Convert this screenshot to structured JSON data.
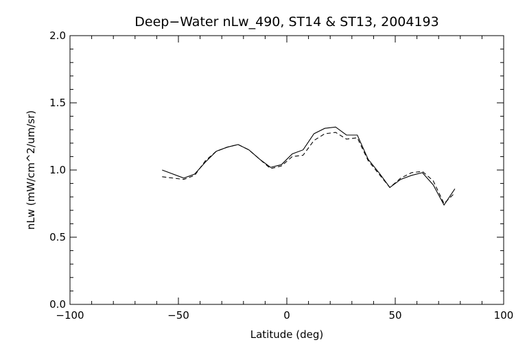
{
  "chart_data": {
    "type": "line",
    "title": "Deep−Water nLw_490, ST14 & ST13, 2004193",
    "xlabel": "Latitude (deg)",
    "ylabel": "nLw (mW/cm^2/um/sr)",
    "xlim": [
      -100,
      100
    ],
    "ylim": [
      0.0,
      2.0
    ],
    "xticks": [
      -100,
      -50,
      0,
      50,
      100
    ],
    "xtick_labels": [
      "−100",
      "−50",
      "0",
      "50",
      "100"
    ],
    "yticks": [
      0.0,
      0.5,
      1.0,
      1.5,
      2.0
    ],
    "ytick_labels": [
      "0.0",
      "0.5",
      "1.0",
      "1.5",
      "2.0"
    ],
    "grid": false,
    "series": [
      {
        "style": "solid",
        "color": "#000000",
        "x": [
          -57.5,
          -47.5,
          -42.5,
          -37.5,
          -32.5,
          -27.5,
          -22.5,
          -17.5,
          -12.5,
          -7.5,
          -2.5,
          2.5,
          7.5,
          12.5,
          17.5,
          22.5,
          27.5,
          32.5,
          37.5,
          42.5,
          47.5,
          52.5,
          57.5,
          62.5,
          67.5,
          72.5,
          77.5
        ],
        "y": [
          1.0,
          0.94,
          0.97,
          1.06,
          1.14,
          1.17,
          1.19,
          1.15,
          1.08,
          1.02,
          1.04,
          1.12,
          1.15,
          1.27,
          1.31,
          1.32,
          1.26,
          1.26,
          1.08,
          0.98,
          0.87,
          0.93,
          0.96,
          0.98,
          0.89,
          0.74,
          0.86
        ]
      },
      {
        "style": "dashed",
        "color": "#000000",
        "x": [
          -57.5,
          -47.5,
          -42.5,
          -37.5,
          -32.5,
          -27.5,
          -22.5,
          -17.5,
          -12.5,
          -7.5,
          -2.5,
          2.5,
          7.5,
          12.5,
          17.5,
          22.5,
          27.5,
          32.5,
          37.5,
          42.5,
          47.5,
          52.5,
          57.5,
          62.5,
          67.5,
          72.5,
          77.5
        ],
        "y": [
          0.95,
          0.93,
          0.96,
          1.07,
          1.14,
          1.17,
          1.19,
          1.15,
          1.08,
          1.01,
          1.03,
          1.1,
          1.11,
          1.22,
          1.27,
          1.28,
          1.23,
          1.24,
          1.07,
          0.97,
          0.87,
          0.94,
          0.98,
          0.99,
          0.92,
          0.75,
          0.83
        ]
      }
    ]
  }
}
